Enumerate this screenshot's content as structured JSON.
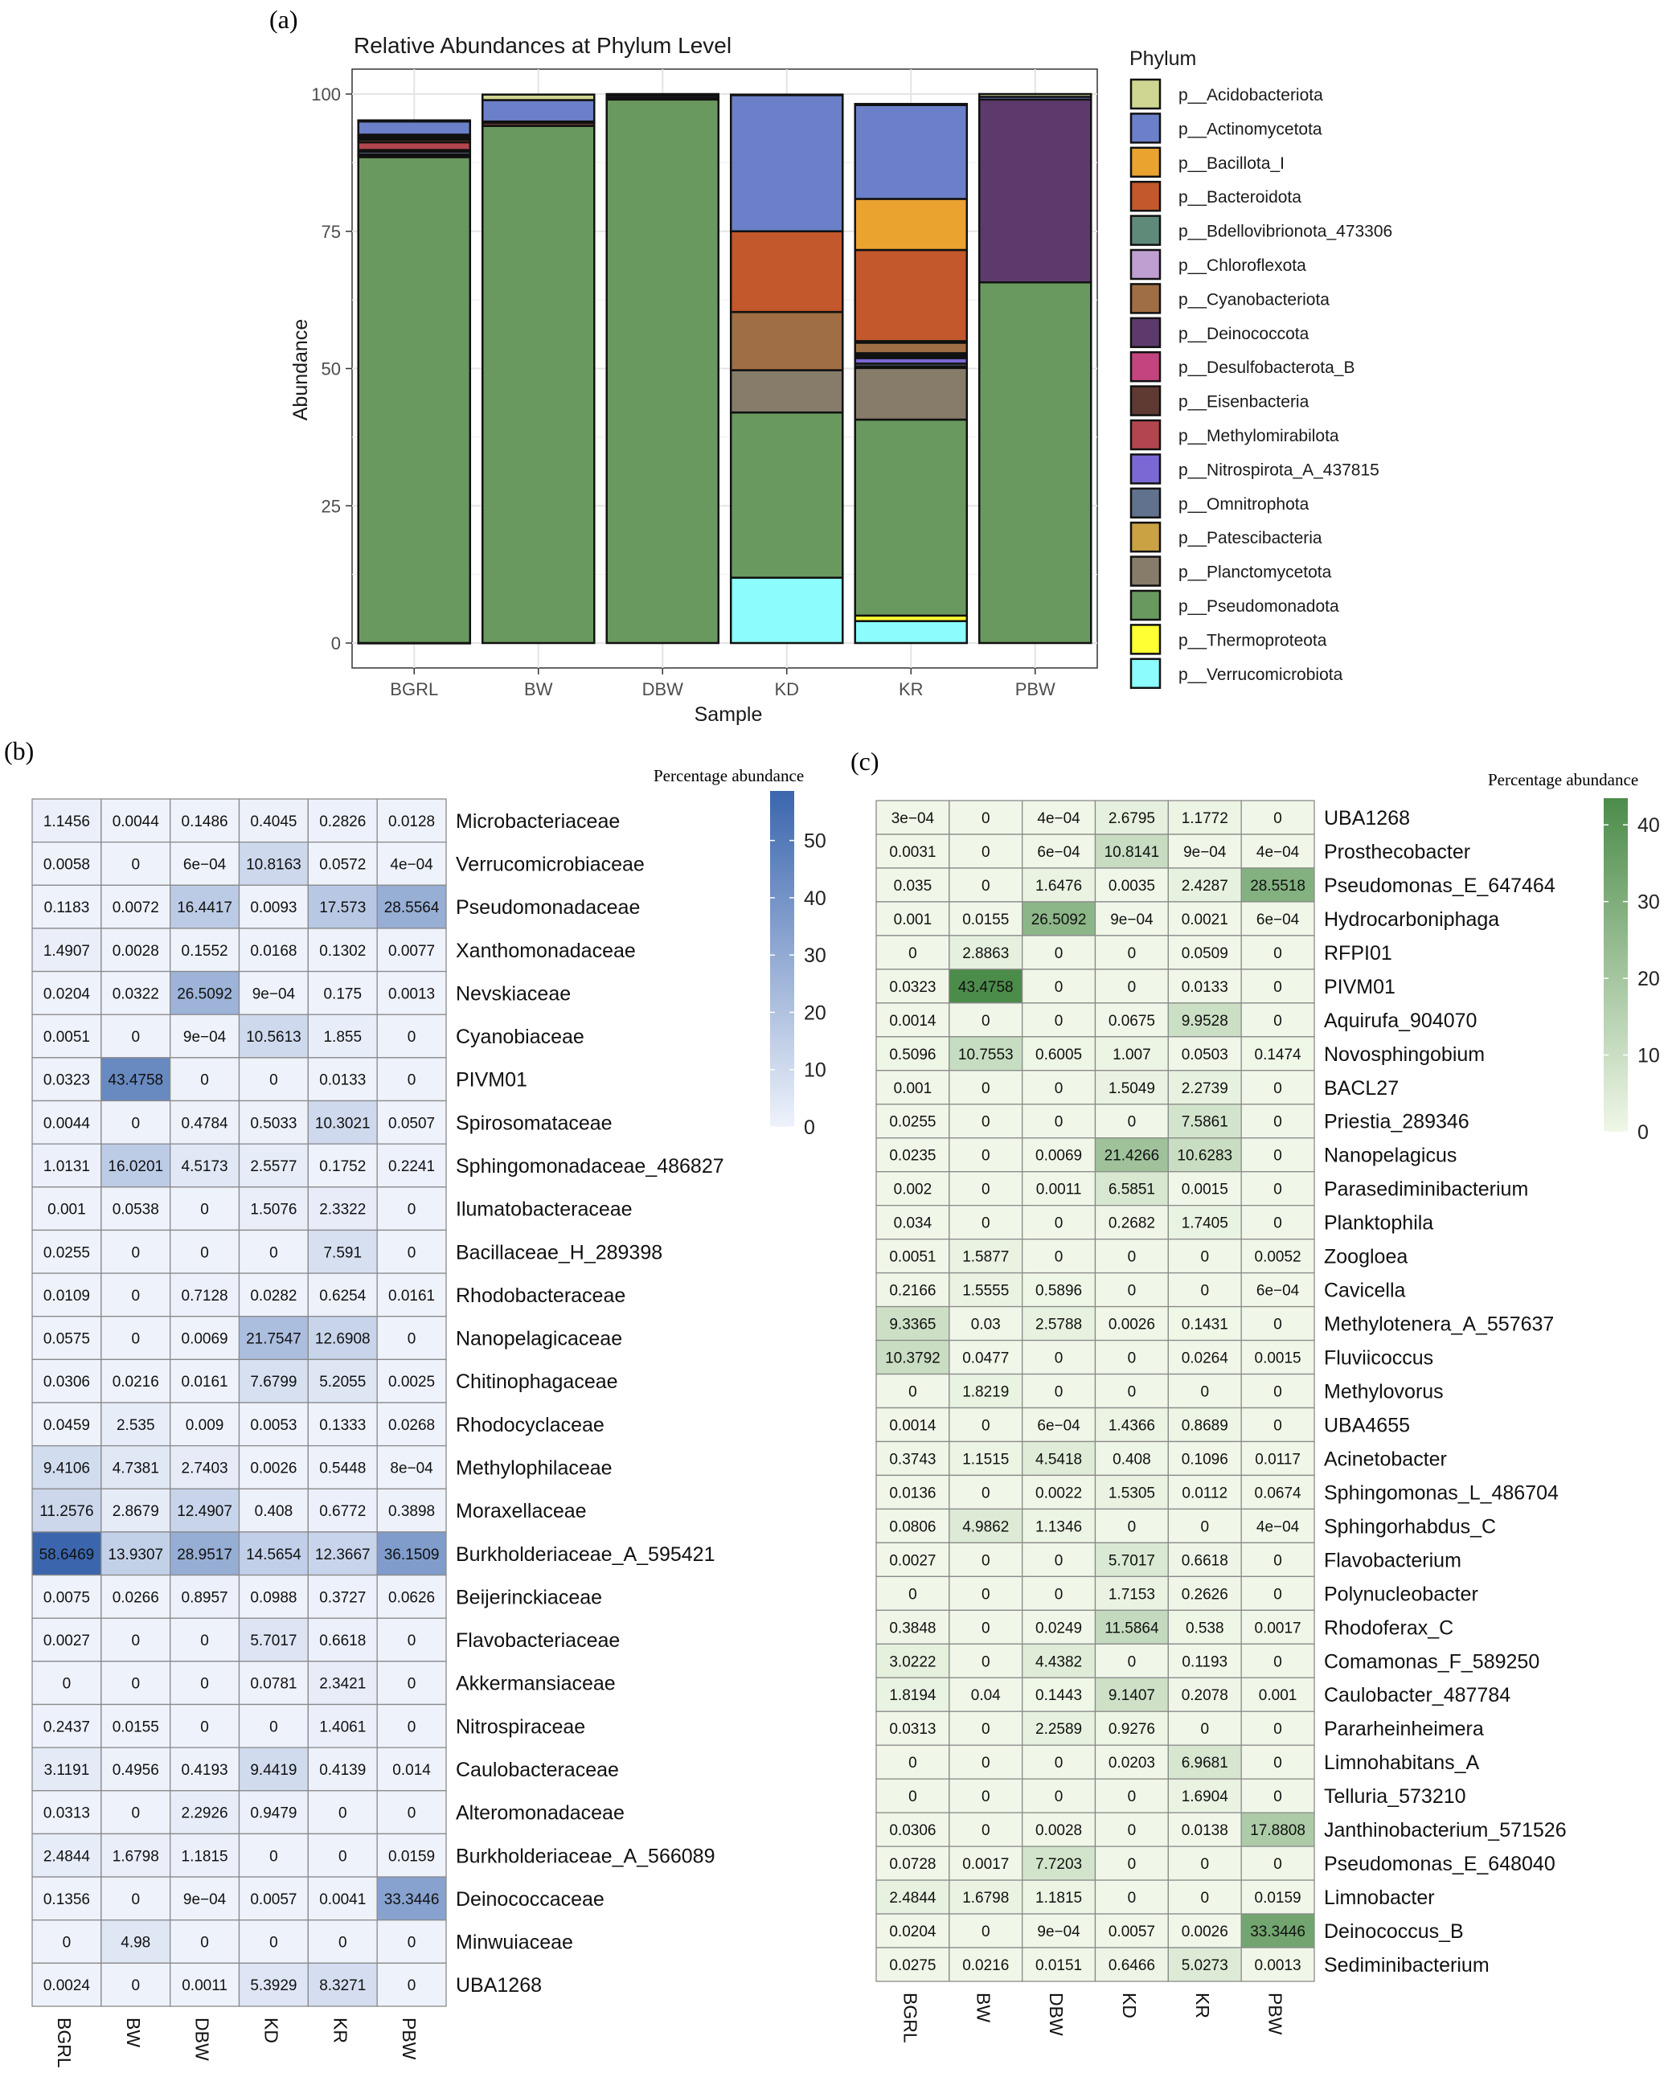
{
  "panel_a": {
    "label": "(a)",
    "chart_data": {
      "type": "bar",
      "stacked": true,
      "title": "Relative Abundances at Phylum Level",
      "xlabel": "Sample",
      "ylabel": "Abundance",
      "ylim": [
        0,
        104
      ],
      "yticks": [
        "0",
        "25",
        "50",
        "75",
        "100"
      ],
      "yticks_values": [
        0,
        25,
        50,
        75,
        100
      ],
      "grid": true,
      "legend_title": "Phylum",
      "legend_placement": "right",
      "categories": [
        "BGRL",
        "BW",
        "DBW",
        "KD",
        "KR",
        "PBW"
      ],
      "series": [
        {
          "name": "p__Verrucomicrobiota",
          "color": "#8cfcfc",
          "values": [
            0.01,
            0,
            0,
            11.9,
            4.0,
            0
          ]
        },
        {
          "name": "p__Thermoproteota",
          "color": "#ffff33",
          "values": [
            0,
            0,
            0,
            0,
            1.0,
            0
          ]
        },
        {
          "name": "p__Pseudomonadota",
          "color": "#6a9960",
          "values": [
            88.5,
            94.2,
            99.0,
            30.1,
            35.7,
            65.7
          ]
        },
        {
          "name": "p__Planctomycetota",
          "color": "#877c6a",
          "values": [
            0.3,
            0,
            0,
            7.7,
            9.4,
            0
          ]
        },
        {
          "name": "p__Patescibacteria",
          "color": "#caa244",
          "values": [
            0.2,
            0,
            0,
            0,
            0.3,
            0
          ]
        },
        {
          "name": "p__Omnitrophota",
          "color": "#61728e",
          "values": [
            0.5,
            0,
            0,
            0,
            0.5,
            0
          ]
        },
        {
          "name": "p__Nitrospirota_A_437815",
          "color": "#7b68d4",
          "values": [
            0.3,
            0,
            0,
            0,
            1.0,
            0
          ]
        },
        {
          "name": "p__Methylomirabilota",
          "color": "#b3454f",
          "values": [
            1.4,
            0,
            0,
            0,
            0.3,
            0
          ]
        },
        {
          "name": "p__Eisenbacteria",
          "color": "#5e3a32",
          "values": [
            0.5,
            0.6,
            0,
            0,
            0.3,
            0
          ]
        },
        {
          "name": "p__Desulfobacterota_B",
          "color": "#c2457f",
          "values": [
            0.3,
            0,
            0,
            0,
            0.3,
            0
          ]
        },
        {
          "name": "p__Deinococcota",
          "color": "#5c3a6c",
          "values": [
            0,
            0,
            0,
            0,
            0,
            33.3
          ]
        },
        {
          "name": "p__Cyanobacteriota",
          "color": "#a06e44",
          "values": [
            0,
            0,
            0,
            10.6,
            1.9,
            0
          ]
        },
        {
          "name": "p__Chloroflexota",
          "color": "#bf9fd1",
          "values": [
            0.2,
            0,
            0,
            0,
            0,
            0
          ]
        },
        {
          "name": "p__Bdellovibrionota_473306",
          "color": "#5f8a7a",
          "values": [
            0.2,
            0,
            0,
            0,
            0.3,
            0
          ]
        },
        {
          "name": "p__Bacteroidota",
          "color": "#c2582c",
          "values": [
            0.2,
            0.2,
            0.3,
            14.7,
            16.6,
            0
          ]
        },
        {
          "name": "p__Bacillota_I",
          "color": "#eba330",
          "values": [
            0,
            0,
            0,
            0,
            9.3,
            0
          ]
        },
        {
          "name": "p__Actinomycetota",
          "color": "#6b80c8",
          "values": [
            2.4,
            3.9,
            0.4,
            24.8,
            17.1,
            0.5
          ]
        },
        {
          "name": "p__Acidobacteriota",
          "color": "#cfd691",
          "values": [
            0.2,
            1.0,
            0.3,
            0.1,
            0.2,
            0.5
          ]
        }
      ],
      "legend_order": [
        "p__Acidobacteriota",
        "p__Actinomycetota",
        "p__Bacillota_I",
        "p__Bacteroidota",
        "p__Bdellovibrionota_473306",
        "p__Chloroflexota",
        "p__Cyanobacteriota",
        "p__Deinococcota",
        "p__Desulfobacterota_B",
        "p__Eisenbacteria",
        "p__Methylomirabilota",
        "p__Nitrospirota_A_437815",
        "p__Omnitrophota",
        "p__Patescibacteria",
        "p__Planctomycetota",
        "p__Pseudomonadota",
        "p__Thermoproteota",
        "p__Verrucomicrobiota"
      ]
    }
  },
  "panel_b": {
    "label": "(b)",
    "chart_data": {
      "type": "heatmap",
      "legend_title": "Percentage abundance",
      "legend_ticks": [
        0,
        10,
        20,
        30,
        40,
        50
      ],
      "scale_max": 58.6469,
      "color_low": "#eef2fb",
      "color_high": "#3b66ad",
      "columns": [
        "BGRL",
        "BW",
        "DBW",
        "KD",
        "KR",
        "PBW"
      ],
      "rows": [
        {
          "name": "Microbacteriaceae",
          "cells": [
            "1.1456",
            "0.0044",
            "0.1486",
            "0.4045",
            "0.2826",
            "0.0128"
          ]
        },
        {
          "name": "Verrucomicrobiaceae",
          "cells": [
            "0.0058",
            "0",
            "6e−04",
            "10.8163",
            "0.0572",
            "4e−04"
          ]
        },
        {
          "name": "Pseudomonadaceae",
          "cells": [
            "0.1183",
            "0.0072",
            "16.4417",
            "0.0093",
            "17.573",
            "28.5564"
          ]
        },
        {
          "name": "Xanthomonadaceae",
          "cells": [
            "1.4907",
            "0.0028",
            "0.1552",
            "0.0168",
            "0.1302",
            "0.0077"
          ]
        },
        {
          "name": "Nevskiaceae",
          "cells": [
            "0.0204",
            "0.0322",
            "26.5092",
            "9e−04",
            "0.175",
            "0.0013"
          ]
        },
        {
          "name": "Cyanobiaceae",
          "cells": [
            "0.0051",
            "0",
            "9e−04",
            "10.5613",
            "1.855",
            "0"
          ]
        },
        {
          "name": "PIVM01",
          "cells": [
            "0.0323",
            "43.4758",
            "0",
            "0",
            "0.0133",
            "0"
          ]
        },
        {
          "name": "Spirosomataceae",
          "cells": [
            "0.0044",
            "0",
            "0.4784",
            "0.5033",
            "10.3021",
            "0.0507"
          ]
        },
        {
          "name": "Sphingomonadaceae_486827",
          "cells": [
            "1.0131",
            "16.0201",
            "4.5173",
            "2.5577",
            "0.1752",
            "0.2241"
          ]
        },
        {
          "name": "Ilumatobacteraceae",
          "cells": [
            "0.001",
            "0.0538",
            "0",
            "1.5076",
            "2.3322",
            "0"
          ]
        },
        {
          "name": "Bacillaceae_H_289398",
          "cells": [
            "0.0255",
            "0",
            "0",
            "0",
            "7.591",
            "0"
          ]
        },
        {
          "name": "Rhodobacteraceae",
          "cells": [
            "0.0109",
            "0",
            "0.7128",
            "0.0282",
            "0.6254",
            "0.0161"
          ]
        },
        {
          "name": "Nanopelagicaceae",
          "cells": [
            "0.0575",
            "0",
            "0.0069",
            "21.7547",
            "12.6908",
            "0"
          ]
        },
        {
          "name": "Chitinophagaceae",
          "cells": [
            "0.0306",
            "0.0216",
            "0.0161",
            "7.6799",
            "5.2055",
            "0.0025"
          ]
        },
        {
          "name": "Rhodocyclaceae",
          "cells": [
            "0.0459",
            "2.535",
            "0.009",
            "0.0053",
            "0.1333",
            "0.0268"
          ]
        },
        {
          "name": "Methylophilaceae",
          "cells": [
            "9.4106",
            "4.7381",
            "2.7403",
            "0.0026",
            "0.5448",
            "8e−04"
          ]
        },
        {
          "name": "Moraxellaceae",
          "cells": [
            "11.2576",
            "2.8679",
            "12.4907",
            "0.408",
            "0.6772",
            "0.3898"
          ]
        },
        {
          "name": "Burkholderiaceae_A_595421",
          "cells": [
            "58.6469",
            "13.9307",
            "28.9517",
            "14.5654",
            "12.3667",
            "36.1509"
          ]
        },
        {
          "name": "Beijerinckiaceae",
          "cells": [
            "0.0075",
            "0.0266",
            "0.8957",
            "0.0988",
            "0.3727",
            "0.0626"
          ]
        },
        {
          "name": "Flavobacteriaceae",
          "cells": [
            "0.0027",
            "0",
            "0",
            "5.7017",
            "0.6618",
            "0"
          ]
        },
        {
          "name": "Akkermansiaceae",
          "cells": [
            "0",
            "0",
            "0",
            "0.0781",
            "2.3421",
            "0"
          ]
        },
        {
          "name": "Nitrospiraceae",
          "cells": [
            "0.2437",
            "0.0155",
            "0",
            "0",
            "1.4061",
            "0"
          ]
        },
        {
          "name": "Caulobacteraceae",
          "cells": [
            "3.1191",
            "0.4956",
            "0.4193",
            "9.4419",
            "0.4139",
            "0.014"
          ]
        },
        {
          "name": "Alteromonadaceae",
          "cells": [
            "0.0313",
            "0",
            "2.2926",
            "0.9479",
            "0",
            "0"
          ]
        },
        {
          "name": "Burkholderiaceae_A_566089",
          "cells": [
            "2.4844",
            "1.6798",
            "1.1815",
            "0",
            "0",
            "0.0159"
          ]
        },
        {
          "name": "Deinococcaceae",
          "cells": [
            "0.1356",
            "0",
            "9e−04",
            "0.0057",
            "0.0041",
            "33.3446"
          ]
        },
        {
          "name": "Minwuiaceae",
          "cells": [
            "0",
            "4.98",
            "0",
            "0",
            "0",
            "0"
          ]
        },
        {
          "name": "UBA1268",
          "cells": [
            "0.0024",
            "0",
            "0.0011",
            "5.3929",
            "8.3271",
            "0"
          ]
        }
      ]
    }
  },
  "panel_c": {
    "label": "(c)",
    "chart_data": {
      "type": "heatmap",
      "legend_title": "Percentage abundance",
      "legend_ticks": [
        0,
        10,
        20,
        30,
        40
      ],
      "scale_max": 43.4758,
      "color_low": "#f0f7e8",
      "color_high": "#4c8c4a",
      "columns": [
        "BGRL",
        "BW",
        "DBW",
        "KD",
        "KR",
        "PBW"
      ],
      "rows": [
        {
          "name": "UBA1268",
          "cells": [
            "3e−04",
            "0",
            "4e−04",
            "2.6795",
            "1.1772",
            "0"
          ]
        },
        {
          "name": "Prosthecobacter",
          "cells": [
            "0.0031",
            "0",
            "6e−04",
            "10.8141",
            "9e−04",
            "4e−04"
          ]
        },
        {
          "name": "Pseudomonas_E_647464",
          "cells": [
            "0.035",
            "0",
            "1.6476",
            "0.0035",
            "2.4287",
            "28.5518"
          ]
        },
        {
          "name": "Hydrocarboniphaga",
          "cells": [
            "0.001",
            "0.0155",
            "26.5092",
            "9e−04",
            "0.0021",
            "6e−04"
          ]
        },
        {
          "name": "RFPI01",
          "cells": [
            "0",
            "2.8863",
            "0",
            "0",
            "0.0509",
            "0"
          ]
        },
        {
          "name": "PIVM01",
          "cells": [
            "0.0323",
            "43.4758",
            "0",
            "0",
            "0.0133",
            "0"
          ]
        },
        {
          "name": "Aquirufa_904070",
          "cells": [
            "0.0014",
            "0",
            "0",
            "0.0675",
            "9.9528",
            "0"
          ]
        },
        {
          "name": "Novosphingobium",
          "cells": [
            "0.5096",
            "10.7553",
            "0.6005",
            "1.007",
            "0.0503",
            "0.1474"
          ]
        },
        {
          "name": "BACL27",
          "cells": [
            "0.001",
            "0",
            "0",
            "1.5049",
            "2.2739",
            "0"
          ]
        },
        {
          "name": "Priestia_289346",
          "cells": [
            "0.0255",
            "0",
            "0",
            "0",
            "7.5861",
            "0"
          ]
        },
        {
          "name": "Nanopelagicus",
          "cells": [
            "0.0235",
            "0",
            "0.0069",
            "21.4266",
            "10.6283",
            "0"
          ]
        },
        {
          "name": "Parasediminibacterium",
          "cells": [
            "0.002",
            "0",
            "0.0011",
            "6.5851",
            "0.0015",
            "0"
          ]
        },
        {
          "name": "Planktophila",
          "cells": [
            "0.034",
            "0",
            "0",
            "0.2682",
            "1.7405",
            "0"
          ]
        },
        {
          "name": "Zoogloea",
          "cells": [
            "0.0051",
            "1.5877",
            "0",
            "0",
            "0",
            "0.0052"
          ]
        },
        {
          "name": "Cavicella",
          "cells": [
            "0.2166",
            "1.5555",
            "0.5896",
            "0",
            "0",
            "6e−04"
          ]
        },
        {
          "name": "Methylotenera_A_557637",
          "cells": [
            "9.3365",
            "0.03",
            "2.5788",
            "0.0026",
            "0.1431",
            "0"
          ]
        },
        {
          "name": "Fluviicoccus",
          "cells": [
            "10.3792",
            "0.0477",
            "0",
            "0",
            "0.0264",
            "0.0015"
          ]
        },
        {
          "name": "Methylovorus",
          "cells": [
            "0",
            "1.8219",
            "0",
            "0",
            "0",
            "0"
          ]
        },
        {
          "name": "UBA4655",
          "cells": [
            "0.0014",
            "0",
            "6e−04",
            "1.4366",
            "0.8689",
            "0"
          ]
        },
        {
          "name": "Acinetobacter",
          "cells": [
            "0.3743",
            "1.1515",
            "4.5418",
            "0.408",
            "0.1096",
            "0.0117"
          ]
        },
        {
          "name": "Sphingomonas_L_486704",
          "cells": [
            "0.0136",
            "0",
            "0.0022",
            "1.5305",
            "0.0112",
            "0.0674"
          ]
        },
        {
          "name": "Sphingorhabdus_C",
          "cells": [
            "0.0806",
            "4.9862",
            "1.1346",
            "0",
            "0",
            "4e−04"
          ]
        },
        {
          "name": "Flavobacterium",
          "cells": [
            "0.0027",
            "0",
            "0",
            "5.7017",
            "0.6618",
            "0"
          ]
        },
        {
          "name": "Polynucleobacter",
          "cells": [
            "0",
            "0",
            "0",
            "1.7153",
            "0.2626",
            "0"
          ]
        },
        {
          "name": "Rhodoferax_C",
          "cells": [
            "0.3848",
            "0",
            "0.0249",
            "11.5864",
            "0.538",
            "0.0017"
          ]
        },
        {
          "name": "Comamonas_F_589250",
          "cells": [
            "3.0222",
            "0",
            "4.4382",
            "0",
            "0.1193",
            "0"
          ]
        },
        {
          "name": "Caulobacter_487784",
          "cells": [
            "1.8194",
            "0.04",
            "0.1443",
            "9.1407",
            "0.2078",
            "0.001"
          ]
        },
        {
          "name": "Pararheinheimera",
          "cells": [
            "0.0313",
            "0",
            "2.2589",
            "0.9276",
            "0",
            "0"
          ]
        },
        {
          "name": "Limnohabitans_A",
          "cells": [
            "0",
            "0",
            "0",
            "0.0203",
            "6.9681",
            "0"
          ]
        },
        {
          "name": "Telluria_573210",
          "cells": [
            "0",
            "0",
            "0",
            "0",
            "1.6904",
            "0"
          ]
        },
        {
          "name": "Janthinobacterium_571526",
          "cells": [
            "0.0306",
            "0",
            "0.0028",
            "0",
            "0.0138",
            "17.8808"
          ]
        },
        {
          "name": "Pseudomonas_E_648040",
          "cells": [
            "0.0728",
            "0.0017",
            "7.7203",
            "0",
            "0",
            "0"
          ]
        },
        {
          "name": "Limnobacter",
          "cells": [
            "2.4844",
            "1.6798",
            "1.1815",
            "0",
            "0",
            "0.0159"
          ]
        },
        {
          "name": "Deinococcus_B",
          "cells": [
            "0.0204",
            "0",
            "9e−04",
            "0.0057",
            "0.0026",
            "33.3446"
          ]
        },
        {
          "name": "Sediminibacterium",
          "cells": [
            "0.0275",
            "0.0216",
            "0.0151",
            "0.6466",
            "5.0273",
            "0.0013"
          ]
        }
      ]
    }
  }
}
